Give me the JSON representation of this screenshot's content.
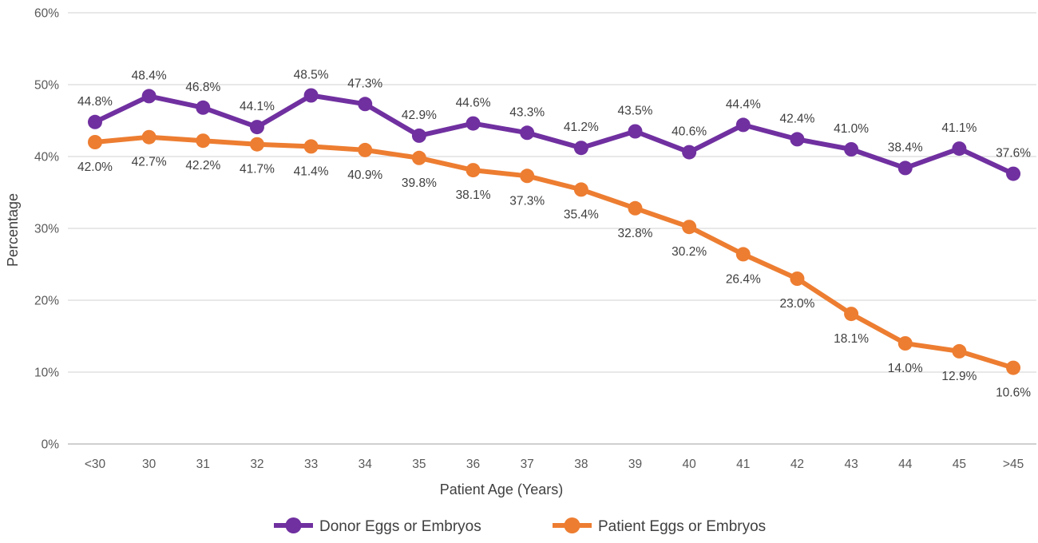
{
  "chart_data": {
    "type": "line",
    "title": "",
    "xlabel": "Patient Age (Years)",
    "ylabel": "Percentage",
    "categories": [
      "<30",
      "30",
      "31",
      "32",
      "33",
      "34",
      "35",
      "36",
      "37",
      "38",
      "39",
      "40",
      "41",
      "42",
      "43",
      "44",
      "45",
      ">45"
    ],
    "series": [
      {
        "name": "Donor Eggs or Embryos",
        "color": "#7030A0",
        "label_position": "above",
        "values": [
          44.8,
          48.4,
          46.8,
          44.1,
          48.5,
          47.3,
          42.9,
          44.6,
          43.3,
          41.2,
          43.5,
          40.6,
          44.4,
          42.4,
          41.0,
          38.4,
          41.1,
          37.6
        ]
      },
      {
        "name": "Patient Eggs or Embryos",
        "color": "#ED7D31",
        "label_position": "below",
        "values": [
          42.0,
          42.7,
          42.2,
          41.7,
          41.4,
          40.9,
          39.8,
          38.1,
          37.3,
          35.4,
          32.8,
          30.2,
          26.4,
          23.0,
          18.1,
          14.0,
          12.9,
          10.6
        ]
      }
    ],
    "y_ticks": [
      "0%",
      "10%",
      "20%",
      "30%",
      "40%",
      "50%",
      "60%"
    ],
    "ylim": [
      0,
      60
    ],
    "grid": true,
    "legend_position": "bottom",
    "data_label_suffix": "%"
  },
  "colors": {
    "gridline": "#D9D9D9",
    "axis_line": "#BFBFBF",
    "tick_text": "#595959",
    "label_text": "#3F3F3F",
    "background": "#FFFFFF"
  }
}
